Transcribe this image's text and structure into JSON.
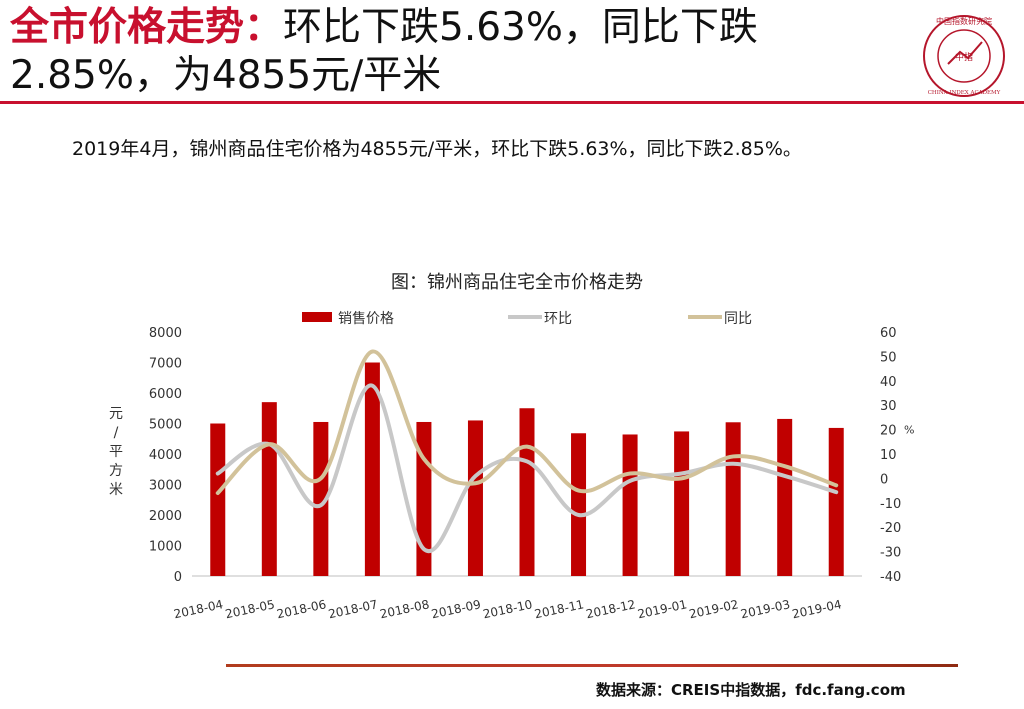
{
  "headline": {
    "red_part": "全市价格走势：",
    "black_part": "环比下跌5.63%，同比下跌2.85%，为4855元/平米"
  },
  "logo": {
    "center_text": "中指",
    "top_text": "中国指数研究院",
    "bottom_text": "CHINA INDEX ACADEMY",
    "color": "#b5162b"
  },
  "summary": "2019年4月，锦州商品住宅价格为4855元/平米，环比下跌5.63%，同比下跌2.85%。",
  "source": "数据来源：CREIS中指数据，fdc.fang.com",
  "colors": {
    "accent": "#c8102e",
    "bar": "#c00000",
    "mom_line": "#c8c8c8",
    "yoy_line": "#d2c29a"
  },
  "chart_data": {
    "type": "bar",
    "title": "图：锦州商品住宅全市价格走势",
    "categories": [
      "2018-04",
      "2018-05",
      "2018-06",
      "2018-07",
      "2018-08",
      "2018-09",
      "2018-10",
      "2018-11",
      "2018-12",
      "2019-01",
      "2019-02",
      "2019-03",
      "2019-04"
    ],
    "left_axis": {
      "label_chars": [
        "元",
        "/",
        "平",
        "方",
        "米"
      ],
      "ylim": [
        0,
        8000
      ],
      "ticks": [
        "0",
        "1000",
        "2000",
        "3000",
        "4000",
        "5000",
        "6000",
        "7000",
        "8000"
      ]
    },
    "right_axis": {
      "unit": "%",
      "ylim": [
        -40,
        60
      ],
      "ticks": [
        "-40",
        "-30",
        "-20",
        "-10",
        "0",
        "10",
        "20",
        "30",
        "40",
        "50",
        "60"
      ]
    },
    "legend": [
      "销售价格",
      "环比",
      "同比"
    ],
    "series": [
      {
        "name": "销售价格",
        "kind": "bar",
        "axis": "left",
        "values": [
          5000,
          5700,
          5050,
          7000,
          5050,
          5100,
          5500,
          4680,
          4640,
          4740,
          5040,
          5150,
          4855
        ]
      },
      {
        "name": "环比",
        "kind": "line",
        "axis": "right",
        "values": [
          2,
          14,
          -11,
          38,
          -29,
          1,
          7,
          -15,
          -1,
          2,
          6,
          1,
          -5.63
        ]
      },
      {
        "name": "同比",
        "kind": "line",
        "axis": "right",
        "values": [
          -6,
          14,
          0,
          52,
          8,
          -2,
          13,
          -5,
          2,
          0,
          9,
          5,
          -2.85
        ]
      }
    ]
  }
}
